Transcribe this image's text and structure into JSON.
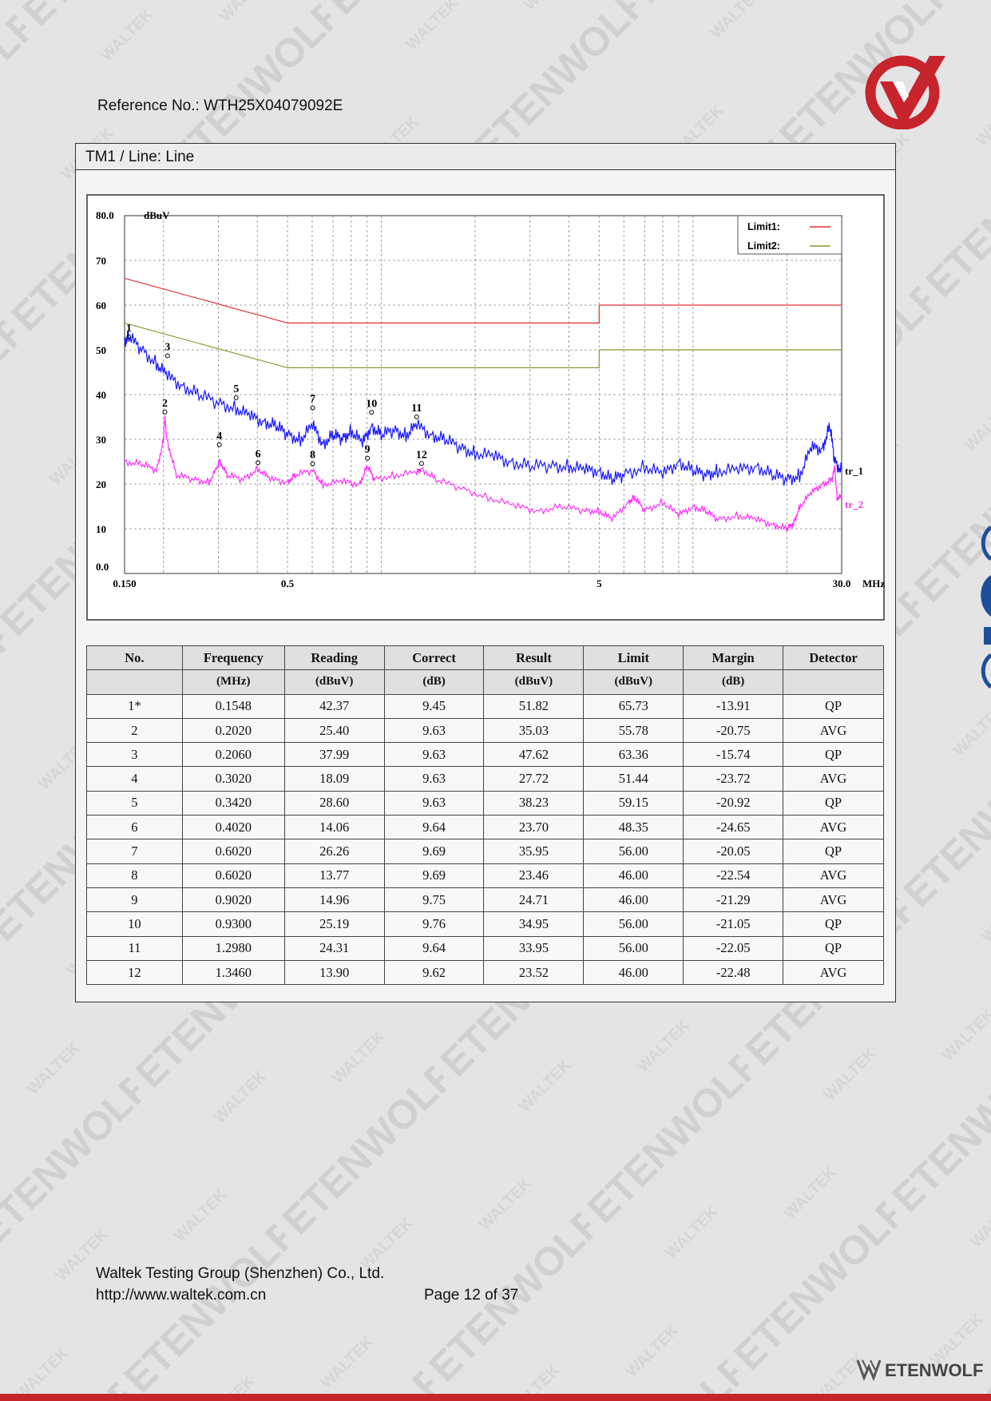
{
  "header": {
    "reference": "Reference No.: WTH25X04079092E"
  },
  "section": {
    "title": "TM1 / Line: Line"
  },
  "chart_data": {
    "type": "line",
    "y_unit": "dBuV",
    "x_unit": "MHz",
    "x_scale": "log",
    "xlim": [
      0.15,
      30.0
    ],
    "ylim": [
      0.0,
      80.0
    ],
    "y_ticks": [
      "80.0",
      "70",
      "60",
      "50",
      "40",
      "30",
      "20",
      "10",
      "0.0"
    ],
    "x_ticks": [
      "0.150",
      "0.5",
      "5",
      "30.0"
    ],
    "grid": true,
    "legend": [
      {
        "name": "Limit1:",
        "color": "#e53030"
      },
      {
        "name": "Limit2:",
        "color": "#8a9a2a"
      }
    ],
    "trace_labels": [
      {
        "name": "tr_1",
        "color": "#1a1aff"
      },
      {
        "name": "tr_2",
        "color": "#ff30ff"
      }
    ],
    "series": [
      {
        "name": "Limit1:",
        "color": "#e53030",
        "x": [
          0.15,
          0.5,
          0.5,
          5,
          5,
          30
        ],
        "y": [
          66,
          56,
          56,
          56,
          60,
          60
        ]
      },
      {
        "name": "Limit2:",
        "color": "#8a9a2a",
        "x": [
          0.15,
          0.5,
          0.5,
          5,
          5,
          30
        ],
        "y": [
          56,
          46,
          46,
          46,
          50,
          50
        ]
      },
      {
        "name": "tr_1",
        "color": "#1a1aff",
        "x": [
          0.15,
          0.1548,
          0.17,
          0.19,
          0.206,
          0.23,
          0.26,
          0.3,
          0.342,
          0.38,
          0.42,
          0.46,
          0.5,
          0.55,
          0.602,
          0.65,
          0.7,
          0.75,
          0.8,
          0.87,
          0.93,
          1.0,
          1.1,
          1.2,
          1.3,
          1.45,
          1.6,
          1.8,
          2.0,
          2.3,
          2.6,
          3.0,
          3.5,
          4.0,
          4.5,
          5.0,
          5.5,
          6.0,
          7.0,
          8.0,
          9.0,
          10.0,
          11.0,
          12.0,
          14.0,
          16.0,
          18.0,
          20.0,
          22.0,
          24.0,
          26.0,
          27.5,
          28.5,
          30.0
        ],
        "y": [
          52,
          53,
          50,
          47,
          44,
          42,
          40,
          38,
          37,
          35,
          34,
          33,
          31,
          30,
          33,
          29,
          31,
          30,
          32,
          29,
          33,
          31,
          32,
          31,
          33,
          31,
          30,
          28,
          27,
          26,
          25,
          24,
          24,
          24,
          23,
          23,
          21,
          22,
          24,
          22,
          25,
          23,
          22,
          23,
          23,
          24,
          22,
          21,
          22,
          28,
          28,
          33,
          25,
          23
        ]
      },
      {
        "name": "tr_2",
        "color": "#ff30ff",
        "x": [
          0.15,
          0.17,
          0.19,
          0.2,
          0.202,
          0.205,
          0.22,
          0.25,
          0.28,
          0.3,
          0.302,
          0.32,
          0.36,
          0.402,
          0.44,
          0.5,
          0.53,
          0.602,
          0.65,
          0.75,
          0.85,
          0.902,
          0.95,
          1.1,
          1.3,
          1.346,
          1.5,
          1.8,
          2.2,
          2.7,
          3.2,
          3.8,
          4.5,
          5.0,
          5.5,
          6.2,
          6.5,
          7.0,
          8.0,
          9.0,
          10.0,
          11.0,
          12.0,
          14.0,
          16.0,
          18.0,
          20.0,
          21.0,
          22.0,
          24.0,
          26.0,
          28.0,
          28.5,
          29.0,
          30.0
        ],
        "y": [
          25,
          24.5,
          23,
          30,
          35,
          30,
          22,
          21,
          20.5,
          24,
          25.5,
          22,
          21,
          23.5,
          21,
          20.5,
          22,
          23,
          20,
          20.5,
          20,
          24,
          21,
          22,
          22.5,
          23.5,
          21,
          19,
          17,
          15,
          14,
          15,
          14,
          14,
          12,
          16,
          17,
          14,
          16,
          13,
          15,
          14,
          12,
          13,
          12,
          11,
          10,
          11,
          15,
          18,
          20,
          21,
          24,
          17,
          17
        ]
      }
    ],
    "markers": [
      {
        "label": "1",
        "x": 0.1548,
        "y": 51.82
      },
      {
        "label": "2",
        "x": 0.202,
        "y": 35.03
      },
      {
        "label": "3",
        "x": 0.206,
        "y": 47.62
      },
      {
        "label": "4",
        "x": 0.302,
        "y": 27.72
      },
      {
        "label": "5",
        "x": 0.342,
        "y": 38.23
      },
      {
        "label": "6",
        "x": 0.402,
        "y": 23.7
      },
      {
        "label": "7",
        "x": 0.602,
        "y": 35.95
      },
      {
        "label": "8",
        "x": 0.602,
        "y": 23.46
      },
      {
        "label": "9",
        "x": 0.902,
        "y": 24.71
      },
      {
        "label": "10",
        "x": 0.93,
        "y": 34.95
      },
      {
        "label": "11",
        "x": 1.298,
        "y": 33.95
      },
      {
        "label": "12",
        "x": 1.346,
        "y": 23.52
      }
    ]
  },
  "table": {
    "headers": [
      "No.",
      "Frequency",
      "Reading",
      "Correct",
      "Result",
      "Limit",
      "Margin",
      "Detector"
    ],
    "units": [
      "",
      "(MHz)",
      "(dBuV)",
      "(dB)",
      "(dBuV)",
      "(dBuV)",
      "(dB)",
      ""
    ],
    "rows": [
      [
        "1*",
        "0.1548",
        "42.37",
        "9.45",
        "51.82",
        "65.73",
        "-13.91",
        "QP"
      ],
      [
        "2",
        "0.2020",
        "25.40",
        "9.63",
        "35.03",
        "55.78",
        "-20.75",
        "AVG"
      ],
      [
        "3",
        "0.2060",
        "37.99",
        "9.63",
        "47.62",
        "63.36",
        "-15.74",
        "QP"
      ],
      [
        "4",
        "0.3020",
        "18.09",
        "9.63",
        "27.72",
        "51.44",
        "-23.72",
        "AVG"
      ],
      [
        "5",
        "0.3420",
        "28.60",
        "9.63",
        "38.23",
        "59.15",
        "-20.92",
        "QP"
      ],
      [
        "6",
        "0.4020",
        "14.06",
        "9.64",
        "23.70",
        "48.35",
        "-24.65",
        "AVG"
      ],
      [
        "7",
        "0.6020",
        "26.26",
        "9.69",
        "35.95",
        "56.00",
        "-20.05",
        "QP"
      ],
      [
        "8",
        "0.6020",
        "13.77",
        "9.69",
        "23.46",
        "46.00",
        "-22.54",
        "AVG"
      ],
      [
        "9",
        "0.9020",
        "14.96",
        "9.75",
        "24.71",
        "46.00",
        "-21.29",
        "AVG"
      ],
      [
        "10",
        "0.9300",
        "25.19",
        "9.76",
        "34.95",
        "56.00",
        "-21.05",
        "QP"
      ],
      [
        "11",
        "1.2980",
        "24.31",
        "9.64",
        "33.95",
        "56.00",
        "-22.05",
        "QP"
      ],
      [
        "12",
        "1.3460",
        "13.90",
        "9.62",
        "23.52",
        "46.00",
        "-22.48",
        "AVG"
      ]
    ]
  },
  "footer": {
    "company": "Waltek Testing Group (Shenzhen) Co., Ltd.",
    "website": "http://www.waltek.com.cn",
    "page": "Page 12 of 37"
  },
  "watermark": {
    "text1": "ETENWOLF",
    "text2": "WALTEK"
  },
  "brand": {
    "name": "ETENWOLF",
    "accent": "#c8242c"
  }
}
